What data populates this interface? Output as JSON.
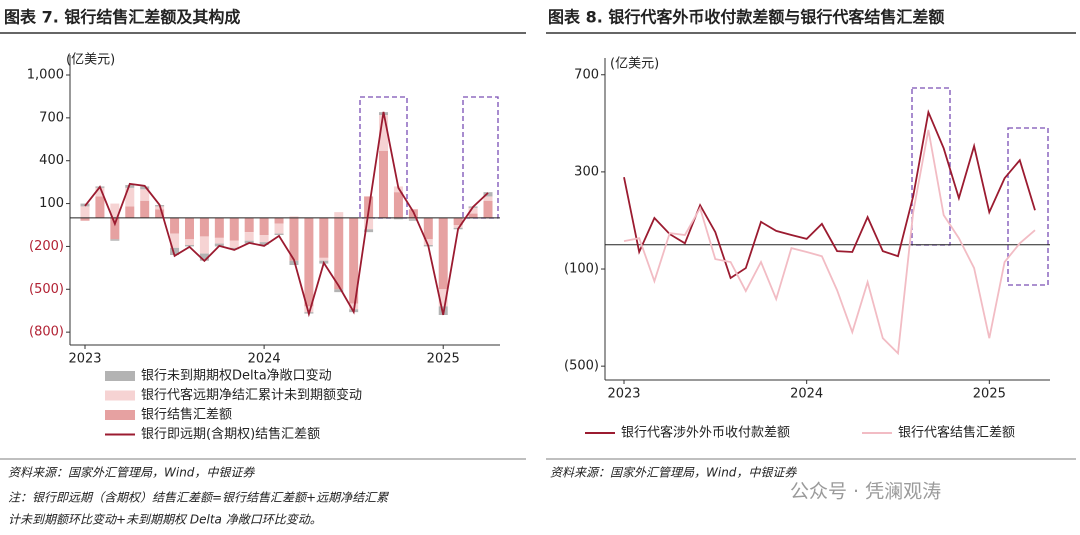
{
  "chart_data": [
    {
      "type": "bar",
      "stacked": true,
      "title": "图表 7. 银行结售汇差额及其构成",
      "ylabel": "(亿美元)",
      "categories": [
        "2023",
        null,
        null,
        null,
        null,
        null,
        null,
        null,
        null,
        null,
        null,
        null,
        "2024",
        null,
        null,
        null,
        null,
        null,
        null,
        null,
        null,
        null,
        null,
        null,
        "2025",
        null,
        null,
        null
      ],
      "ylim": [
        -890,
        1140
      ],
      "yticks": [
        {
          "value": 1000,
          "label": "1,000"
        },
        700,
        400,
        100,
        {
          "value": -200,
          "label": "(200)"
        },
        {
          "value": -500,
          "label": "(500)"
        },
        {
          "value": -800,
          "label": "(800)"
        }
      ],
      "negative_tick_color": "#b22234",
      "legend": "bottom",
      "series": [
        {
          "name": "银行未到期期权Delta净敞口变动",
          "color": "#b3b3b3",
          "values": [
            20,
            10,
            -10,
            20,
            20,
            10,
            -50,
            -10,
            -50,
            -20,
            -10,
            -20,
            -20,
            -10,
            -30,
            -10,
            -20,
            -20,
            -20,
            -20,
            20,
            -10,
            -10,
            -10,
            -60,
            -10,
            10,
            30
          ]
        },
        {
          "name": "银行代客远期净结汇累计未到期额变动",
          "color": "#f6d3d3",
          "values": [
            80,
            60,
            100,
            130,
            80,
            20,
            -100,
            -40,
            -120,
            -40,
            -50,
            -60,
            -50,
            -70,
            10,
            -40,
            -20,
            40,
            -40,
            -80,
            250,
            40,
            -10,
            -40,
            -120,
            -20,
            40,
            30
          ]
        },
        {
          "name": "银行结售汇差额",
          "color": "#e6a1a1",
          "values": [
            -20,
            150,
            -150,
            80,
            120,
            60,
            -110,
            -150,
            -130,
            -140,
            -160,
            -100,
            -120,
            -40,
            -300,
            -620,
            -280,
            -500,
            -600,
            150,
            470,
            180,
            60,
            -150,
            -500,
            -50,
            30,
            120
          ]
        },
        {
          "name": "银行即远期(含期权)结售汇差额",
          "color": "#9b1b30",
          "type": "line",
          "values": [
            84,
            217,
            -42,
            238,
            224,
            91,
            -266,
            -203,
            -301,
            -196,
            -224,
            -175,
            -196,
            -126,
            -294,
            -672,
            -315,
            -476,
            -658,
            50,
            742,
            210,
            42,
            -196,
            -679,
            -77,
            77,
            175
          ]
        }
      ],
      "source": "资料来源：国家外汇管理局，Wind，中银证券",
      "note": [
        "注：银行即远期（含期权）结售汇差额=银行结售汇差额+远期净结汇累",
        "计未到期额环比变动+未到期期权 Delta 净敞口环比变动。"
      ]
    },
    {
      "type": "line",
      "title": "图表 8. 银行代客外币收付款差额与银行代客结售汇差额",
      "ylabel": "(亿美元)",
      "categories": [
        "2023",
        null,
        null,
        null,
        null,
        null,
        null,
        null,
        null,
        null,
        null,
        null,
        "2024",
        null,
        null,
        null,
        null,
        null,
        null,
        null,
        null,
        null,
        null,
        null,
        "2025",
        null,
        null,
        null
      ],
      "ylim": [
        -557,
        769
      ],
      "yticks": [
        700,
        300,
        {
          "value": -100,
          "label": "(100)"
        },
        {
          "value": -500,
          "label": "(500)"
        }
      ],
      "legend": "bottom",
      "series": [
        {
          "name": "银行代客涉外外币收付款差额",
          "color": "#9b1b30",
          "values": [
            278,
            -30,
            110,
            44,
            6,
            163,
            52,
            -137,
            -96,
            94,
            57,
            40,
            24,
            86,
            -26,
            -30,
            114,
            -26,
            -47,
            200,
            546,
            397,
            192,
            406,
            134,
            274,
            348,
            142
          ]
        },
        {
          "name": "银行代客结售汇差额",
          "color": "#f2bcc4",
          "values": [
            15,
            27,
            -150,
            48,
            40,
            151,
            -59,
            -71,
            -191,
            -71,
            -224,
            -14,
            -30,
            -47,
            -187,
            -360,
            -154,
            -385,
            -447,
            134,
            473,
            122,
            27,
            -96,
            -385,
            -71,
            6,
            60
          ]
        }
      ],
      "source": "资料来源：国家外汇管理局，Wind，中银证券"
    }
  ],
  "watermark": "公众号 · 凭澜观涛"
}
